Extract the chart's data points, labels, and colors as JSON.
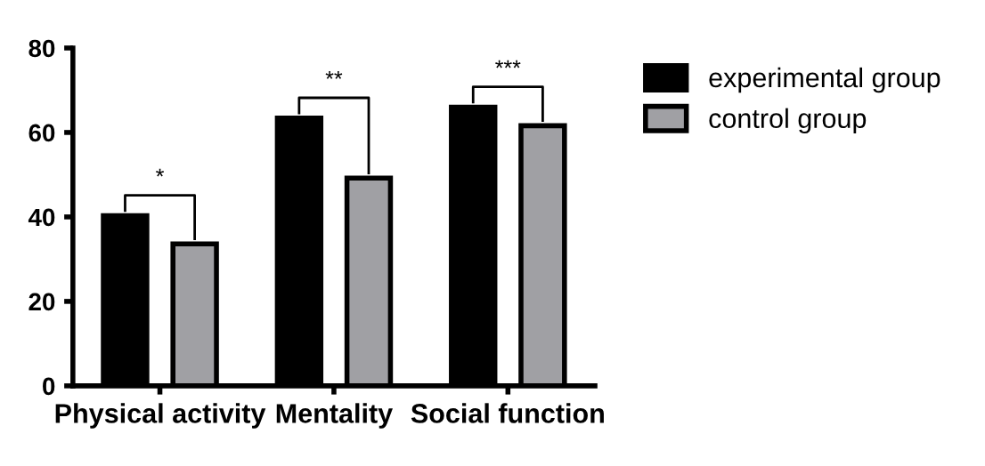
{
  "chart_data": {
    "type": "bar",
    "categories": [
      "Physical activity",
      "Mentality",
      "Social function"
    ],
    "series": [
      {
        "name": "experimental group",
        "color": "#000000",
        "values": [
          40.3,
          63.4,
          66
        ]
      },
      {
        "name": "control group",
        "color": "#a0a0a4",
        "values": [
          33.6,
          49.2,
          61.6
        ]
      }
    ],
    "ylim": [
      0,
      80
    ],
    "yticks": [
      0,
      20,
      40,
      60,
      80
    ],
    "grid": false,
    "legend": "top right",
    "annotations": [
      "*",
      "**",
      "***"
    ]
  }
}
